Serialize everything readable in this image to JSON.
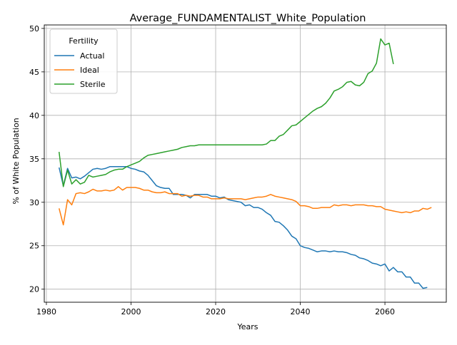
{
  "chart_data": {
    "type": "line",
    "title": "Average_FUNDAMENTALIST_White_Population",
    "xlabel": "Years",
    "ylabel": "% of White Population",
    "xlim": [
      1979.5,
      2074.5
    ],
    "ylim": [
      18.5,
      50.4
    ],
    "xticks": [
      1980,
      2000,
      2020,
      2040,
      2060
    ],
    "yticks": [
      20,
      25,
      30,
      35,
      40,
      45,
      50
    ],
    "grid": true,
    "legend": {
      "title": "Fertility",
      "placement": "upper-left"
    },
    "series": [
      {
        "name": "Actual",
        "color": "#1f77b4",
        "points": [
          [
            1983,
            34.0
          ],
          [
            1984,
            31.9
          ],
          [
            1985,
            33.9
          ],
          [
            1986,
            32.8
          ],
          [
            1987,
            32.9
          ],
          [
            1988,
            32.7
          ],
          [
            1989,
            33.0
          ],
          [
            1990,
            33.4
          ],
          [
            1991,
            33.8
          ],
          [
            1992,
            33.9
          ],
          [
            1993,
            33.8
          ],
          [
            1994,
            33.9
          ],
          [
            1995,
            34.1
          ],
          [
            1996,
            34.1
          ],
          [
            1997,
            34.1
          ],
          [
            1998,
            34.1
          ],
          [
            1999,
            34.1
          ],
          [
            2000,
            33.9
          ],
          [
            2001,
            33.8
          ],
          [
            2002,
            33.6
          ],
          [
            2003,
            33.5
          ],
          [
            2004,
            33.1
          ],
          [
            2005,
            32.5
          ],
          [
            2006,
            31.9
          ],
          [
            2007,
            31.7
          ],
          [
            2008,
            31.6
          ],
          [
            2009,
            31.6
          ],
          [
            2010,
            30.9
          ],
          [
            2011,
            30.9
          ],
          [
            2012,
            30.9
          ],
          [
            2013,
            30.8
          ],
          [
            2014,
            30.5
          ],
          [
            2015,
            30.9
          ],
          [
            2016,
            30.9
          ],
          [
            2017,
            30.9
          ],
          [
            2018,
            30.9
          ],
          [
            2019,
            30.7
          ],
          [
            2020,
            30.7
          ],
          [
            2021,
            30.5
          ],
          [
            2022,
            30.6
          ],
          [
            2023,
            30.3
          ],
          [
            2024,
            30.2
          ],
          [
            2025,
            30.1
          ],
          [
            2026,
            30.0
          ],
          [
            2027,
            29.6
          ],
          [
            2028,
            29.7
          ],
          [
            2029,
            29.4
          ],
          [
            2030,
            29.4
          ],
          [
            2031,
            29.2
          ],
          [
            2032,
            28.8
          ],
          [
            2033,
            28.5
          ],
          [
            2034,
            27.8
          ],
          [
            2035,
            27.7
          ],
          [
            2036,
            27.3
          ],
          [
            2037,
            26.8
          ],
          [
            2038,
            26.1
          ],
          [
            2039,
            25.8
          ],
          [
            2040,
            25.0
          ],
          [
            2041,
            24.8
          ],
          [
            2042,
            24.7
          ],
          [
            2043,
            24.5
          ],
          [
            2044,
            24.3
          ],
          [
            2045,
            24.4
          ],
          [
            2046,
            24.4
          ],
          [
            2047,
            24.3
          ],
          [
            2048,
            24.4
          ],
          [
            2049,
            24.3
          ],
          [
            2050,
            24.3
          ],
          [
            2051,
            24.2
          ],
          [
            2052,
            24.0
          ],
          [
            2053,
            23.9
          ],
          [
            2054,
            23.6
          ],
          [
            2055,
            23.5
          ],
          [
            2056,
            23.3
          ],
          [
            2057,
            23.0
          ],
          [
            2058,
            22.9
          ],
          [
            2059,
            22.7
          ],
          [
            2060,
            22.9
          ],
          [
            2061,
            22.1
          ],
          [
            2062,
            22.5
          ],
          [
            2063,
            22.0
          ],
          [
            2064,
            22.0
          ],
          [
            2065,
            21.4
          ],
          [
            2066,
            21.4
          ],
          [
            2067,
            20.7
          ],
          [
            2068,
            20.7
          ],
          [
            2069,
            20.1
          ],
          [
            2070,
            20.2
          ]
        ]
      },
      {
        "name": "Ideal",
        "color": "#ff7f0e",
        "points": [
          [
            1983,
            29.3
          ],
          [
            1984,
            27.4
          ],
          [
            1985,
            30.3
          ],
          [
            1986,
            29.7
          ],
          [
            1987,
            31.0
          ],
          [
            1988,
            31.1
          ],
          [
            1989,
            31.0
          ],
          [
            1990,
            31.2
          ],
          [
            1991,
            31.5
          ],
          [
            1992,
            31.3
          ],
          [
            1993,
            31.3
          ],
          [
            1994,
            31.4
          ],
          [
            1995,
            31.3
          ],
          [
            1996,
            31.4
          ],
          [
            1997,
            31.8
          ],
          [
            1998,
            31.4
          ],
          [
            1999,
            31.7
          ],
          [
            2000,
            31.7
          ],
          [
            2001,
            31.7
          ],
          [
            2002,
            31.6
          ],
          [
            2003,
            31.4
          ],
          [
            2004,
            31.4
          ],
          [
            2005,
            31.2
          ],
          [
            2006,
            31.1
          ],
          [
            2007,
            31.1
          ],
          [
            2008,
            31.2
          ],
          [
            2009,
            31.0
          ],
          [
            2010,
            31.0
          ],
          [
            2011,
            31.0
          ],
          [
            2012,
            30.7
          ],
          [
            2013,
            30.8
          ],
          [
            2014,
            30.7
          ],
          [
            2015,
            30.8
          ],
          [
            2016,
            30.8
          ],
          [
            2017,
            30.6
          ],
          [
            2018,
            30.6
          ],
          [
            2019,
            30.4
          ],
          [
            2020,
            30.4
          ],
          [
            2021,
            30.4
          ],
          [
            2022,
            30.5
          ],
          [
            2023,
            30.4
          ],
          [
            2024,
            30.4
          ],
          [
            2025,
            30.4
          ],
          [
            2026,
            30.4
          ],
          [
            2027,
            30.3
          ],
          [
            2028,
            30.4
          ],
          [
            2029,
            30.5
          ],
          [
            2030,
            30.6
          ],
          [
            2031,
            30.6
          ],
          [
            2032,
            30.7
          ],
          [
            2033,
            30.9
          ],
          [
            2034,
            30.7
          ],
          [
            2035,
            30.6
          ],
          [
            2036,
            30.5
          ],
          [
            2037,
            30.4
          ],
          [
            2038,
            30.3
          ],
          [
            2039,
            30.1
          ],
          [
            2040,
            29.6
          ],
          [
            2041,
            29.6
          ],
          [
            2042,
            29.5
          ],
          [
            2043,
            29.3
          ],
          [
            2044,
            29.3
          ],
          [
            2045,
            29.4
          ],
          [
            2046,
            29.4
          ],
          [
            2047,
            29.4
          ],
          [
            2048,
            29.7
          ],
          [
            2049,
            29.6
          ],
          [
            2050,
            29.7
          ],
          [
            2051,
            29.7
          ],
          [
            2052,
            29.6
          ],
          [
            2053,
            29.7
          ],
          [
            2054,
            29.7
          ],
          [
            2055,
            29.7
          ],
          [
            2056,
            29.6
          ],
          [
            2057,
            29.6
          ],
          [
            2058,
            29.5
          ],
          [
            2059,
            29.5
          ],
          [
            2060,
            29.2
          ],
          [
            2061,
            29.1
          ],
          [
            2062,
            29.0
          ],
          [
            2063,
            28.9
          ],
          [
            2064,
            28.8
          ],
          [
            2065,
            28.9
          ],
          [
            2066,
            28.8
          ],
          [
            2067,
            29.0
          ],
          [
            2068,
            29.0
          ],
          [
            2069,
            29.3
          ],
          [
            2070,
            29.2
          ],
          [
            2071,
            29.4
          ]
        ]
      },
      {
        "name": "Sterile",
        "color": "#2ca02c",
        "points": [
          [
            1983,
            35.8
          ],
          [
            1984,
            31.8
          ],
          [
            1985,
            33.7
          ],
          [
            1986,
            32.1
          ],
          [
            1987,
            32.6
          ],
          [
            1988,
            32.1
          ],
          [
            1989,
            32.3
          ],
          [
            1990,
            33.1
          ],
          [
            1991,
            32.9
          ],
          [
            1992,
            33.0
          ],
          [
            1993,
            33.1
          ],
          [
            1994,
            33.2
          ],
          [
            1995,
            33.5
          ],
          [
            1996,
            33.7
          ],
          [
            1997,
            33.8
          ],
          [
            1998,
            33.8
          ],
          [
            1999,
            34.1
          ],
          [
            2000,
            34.3
          ],
          [
            2001,
            34.5
          ],
          [
            2002,
            34.7
          ],
          [
            2003,
            35.1
          ],
          [
            2004,
            35.4
          ],
          [
            2005,
            35.5
          ],
          [
            2006,
            35.6
          ],
          [
            2007,
            35.7
          ],
          [
            2008,
            35.8
          ],
          [
            2009,
            35.9
          ],
          [
            2010,
            36.0
          ],
          [
            2011,
            36.1
          ],
          [
            2012,
            36.3
          ],
          [
            2013,
            36.4
          ],
          [
            2014,
            36.5
          ],
          [
            2015,
            36.5
          ],
          [
            2016,
            36.6
          ],
          [
            2017,
            36.6
          ],
          [
            2018,
            36.6
          ],
          [
            2019,
            36.6
          ],
          [
            2020,
            36.6
          ],
          [
            2021,
            36.6
          ],
          [
            2022,
            36.6
          ],
          [
            2023,
            36.6
          ],
          [
            2024,
            36.6
          ],
          [
            2025,
            36.6
          ],
          [
            2026,
            36.6
          ],
          [
            2027,
            36.6
          ],
          [
            2028,
            36.6
          ],
          [
            2029,
            36.6
          ],
          [
            2030,
            36.6
          ],
          [
            2031,
            36.6
          ],
          [
            2032,
            36.7
          ],
          [
            2033,
            37.1
          ],
          [
            2034,
            37.1
          ],
          [
            2035,
            37.6
          ],
          [
            2036,
            37.8
          ],
          [
            2037,
            38.3
          ],
          [
            2038,
            38.8
          ],
          [
            2039,
            38.9
          ],
          [
            2040,
            39.3
          ],
          [
            2041,
            39.7
          ],
          [
            2042,
            40.1
          ],
          [
            2043,
            40.5
          ],
          [
            2044,
            40.8
          ],
          [
            2045,
            41.0
          ],
          [
            2046,
            41.4
          ],
          [
            2047,
            42.0
          ],
          [
            2048,
            42.8
          ],
          [
            2049,
            43.0
          ],
          [
            2050,
            43.3
          ],
          [
            2051,
            43.8
          ],
          [
            2052,
            43.9
          ],
          [
            2053,
            43.5
          ],
          [
            2054,
            43.4
          ],
          [
            2055,
            43.8
          ],
          [
            2056,
            44.8
          ],
          [
            2057,
            45.1
          ],
          [
            2058,
            46.0
          ],
          [
            2059,
            48.8
          ],
          [
            2060,
            48.1
          ],
          [
            2061,
            48.3
          ],
          [
            2062,
            45.9
          ]
        ]
      }
    ]
  }
}
